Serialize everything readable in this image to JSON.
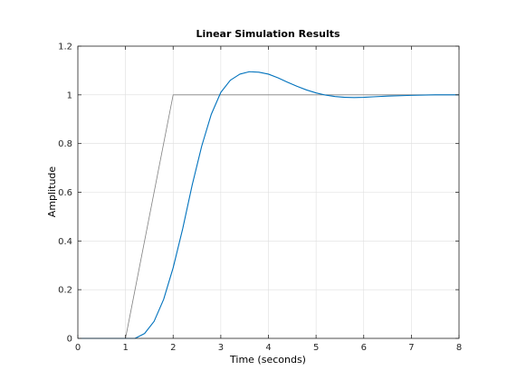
{
  "chart_data": {
    "type": "line",
    "title": "Linear Simulation Results",
    "xlabel": "Time (seconds)",
    "ylabel": "Amplitude",
    "xlim": [
      0,
      8
    ],
    "ylim": [
      0,
      1.2
    ],
    "xticks": [
      "0",
      "1",
      "2",
      "3",
      "4",
      "5",
      "6",
      "7",
      "8"
    ],
    "yticks": [
      "0",
      "0.2",
      "0.4",
      "0.6",
      "0.8",
      "1",
      "1.2"
    ],
    "grid": true,
    "series": [
      {
        "color": "#808080",
        "x": [
          0,
          1,
          2,
          8
        ],
        "y": [
          0,
          0,
          1,
          1
        ]
      },
      {
        "color": "#0072bd",
        "x": [
          0,
          1.2,
          1.4,
          1.6,
          1.8,
          2.0,
          2.2,
          2.4,
          2.6,
          2.8,
          3.0,
          3.2,
          3.4,
          3.6,
          3.8,
          4.0,
          4.2,
          4.4,
          4.6,
          4.8,
          5.0,
          5.2,
          5.4,
          5.6,
          5.8,
          6.0,
          6.2,
          6.5,
          7.0,
          7.5,
          8.0
        ],
        "y": [
          0,
          0,
          0.02,
          0.07,
          0.16,
          0.29,
          0.45,
          0.63,
          0.79,
          0.92,
          1.01,
          1.06,
          1.085,
          1.095,
          1.093,
          1.085,
          1.07,
          1.052,
          1.035,
          1.02,
          1.008,
          0.999,
          0.993,
          0.99,
          0.989,
          0.99,
          0.992,
          0.995,
          0.998,
          1.0,
          1.0
        ]
      }
    ]
  }
}
